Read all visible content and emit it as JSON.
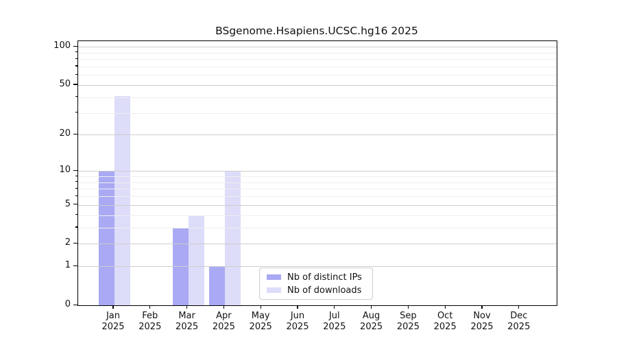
{
  "figure": {
    "background": "#ffffff"
  },
  "chart_data": {
    "type": "bar",
    "title": "BSgenome.Hsapiens.UCSC.hg16 2025",
    "x_categories": [
      {
        "month": "Jan",
        "year": "2025"
      },
      {
        "month": "Feb",
        "year": "2025"
      },
      {
        "month": "Mar",
        "year": "2025"
      },
      {
        "month": "Apr",
        "year": "2025"
      },
      {
        "month": "May",
        "year": "2025"
      },
      {
        "month": "Jun",
        "year": "2025"
      },
      {
        "month": "Jul",
        "year": "2025"
      },
      {
        "month": "Aug",
        "year": "2025"
      },
      {
        "month": "Sep",
        "year": "2025"
      },
      {
        "month": "Oct",
        "year": "2025"
      },
      {
        "month": "Nov",
        "year": "2025"
      },
      {
        "month": "Dec",
        "year": "2025"
      }
    ],
    "series": [
      {
        "name": "Nb of distinct IPs",
        "color": "#a9a9f4",
        "values": [
          10,
          0,
          3,
          1,
          0,
          0,
          0,
          0,
          0,
          0,
          0,
          0
        ]
      },
      {
        "name": "Nb of downloads",
        "color": "#dddcf9",
        "values": [
          41,
          0,
          4,
          10,
          0,
          0,
          0,
          0,
          0,
          0,
          0,
          0
        ]
      }
    ],
    "y_scale": "log1p",
    "y_ticks_major": [
      0,
      1,
      2,
      5,
      10,
      20,
      50,
      100
    ],
    "y_ticks_minor": [
      3,
      4,
      6,
      7,
      8,
      9,
      30,
      40,
      60,
      70,
      80,
      90
    ],
    "ylim": [
      0,
      112
    ],
    "xlabel": "",
    "ylabel": "",
    "grid": "horizontal-log",
    "legend_position": "lower-center",
    "grid_color_major": "#cdcdcd",
    "grid_color_minor": "#efefef"
  }
}
